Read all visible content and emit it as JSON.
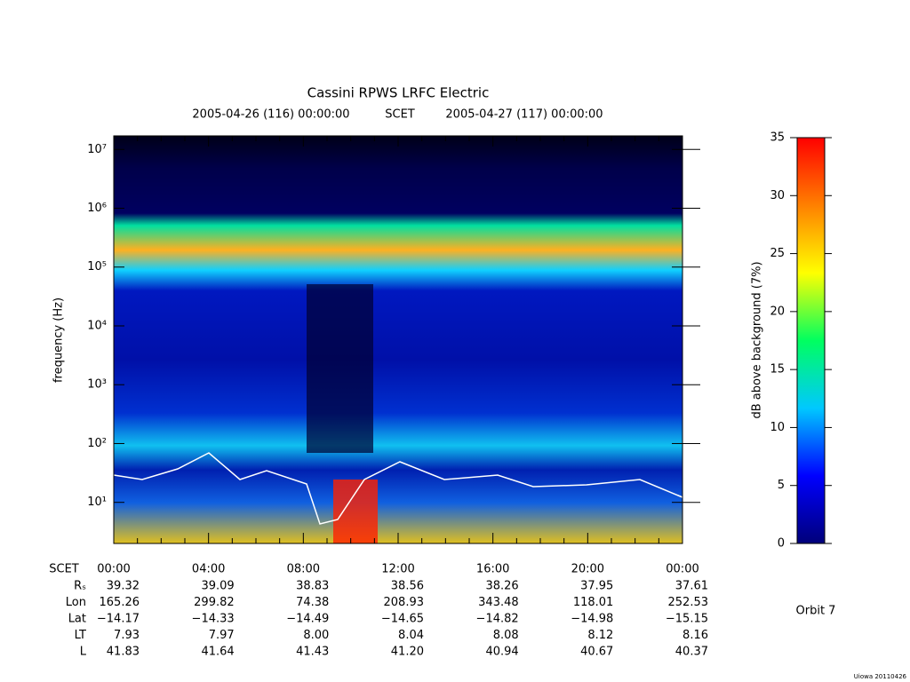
{
  "chart_data": {
    "type": "spectrogram",
    "title": "Cassini RPWS LRFC Electric",
    "subtitle_start": "2005-04-26 (116) 00:00:00",
    "subtitle_mid": "SCET",
    "subtitle_end": "2005-04-27 (117) 00:00:00",
    "ylabel": "frequency (Hz)",
    "log_y": true,
    "ylim": [
      2,
      17000000
    ],
    "yticks": [
      {
        "value": 10,
        "label": "10¹"
      },
      {
        "value": 100,
        "label": "10²"
      },
      {
        "value": 1000,
        "label": "10³"
      },
      {
        "value": 10000,
        "label": "10⁴"
      },
      {
        "value": 100000,
        "label": "10⁵"
      },
      {
        "value": 1000000,
        "label": "10⁶"
      },
      {
        "value": 10000000,
        "label": "10⁷"
      }
    ],
    "categories": [
      "00:00",
      "04:00",
      "08:00",
      "12:00",
      "16:00",
      "20:00",
      "00:00"
    ],
    "x_row_label": "SCET",
    "ephemeris": [
      {
        "label": "Rₛ",
        "values": [
          "39.32",
          "39.09",
          "38.83",
          "38.56",
          "38.26",
          "37.95",
          "37.61"
        ]
      },
      {
        "label": "Lon",
        "values": [
          "165.26",
          "299.82",
          "74.38",
          "208.93",
          "343.48",
          "118.01",
          "252.53"
        ]
      },
      {
        "label": "Lat",
        "values": [
          "−14.17",
          "−14.33",
          "−14.49",
          "−14.65",
          "−14.82",
          "−14.98",
          "−15.15"
        ]
      },
      {
        "label": "LT",
        "values": [
          "7.93",
          "7.97",
          "8.00",
          "8.04",
          "8.08",
          "8.12",
          "8.16"
        ]
      },
      {
        "label": "L",
        "values": [
          "41.83",
          "41.64",
          "41.43",
          "41.20",
          "40.94",
          "40.67",
          "40.37"
        ]
      }
    ],
    "zlabel": "dB above background (7%)",
    "zlim": [
      0,
      35
    ],
    "zticks": [
      0,
      5,
      10,
      15,
      20,
      25,
      30,
      35
    ],
    "colormap": [
      "#00007a",
      "#0000ff",
      "#00c8ff",
      "#00ff60",
      "#ffff00",
      "#ff8000",
      "#ff0000"
    ],
    "orbit": "Orbit 7",
    "credit": "Uiowa 20110426"
  }
}
